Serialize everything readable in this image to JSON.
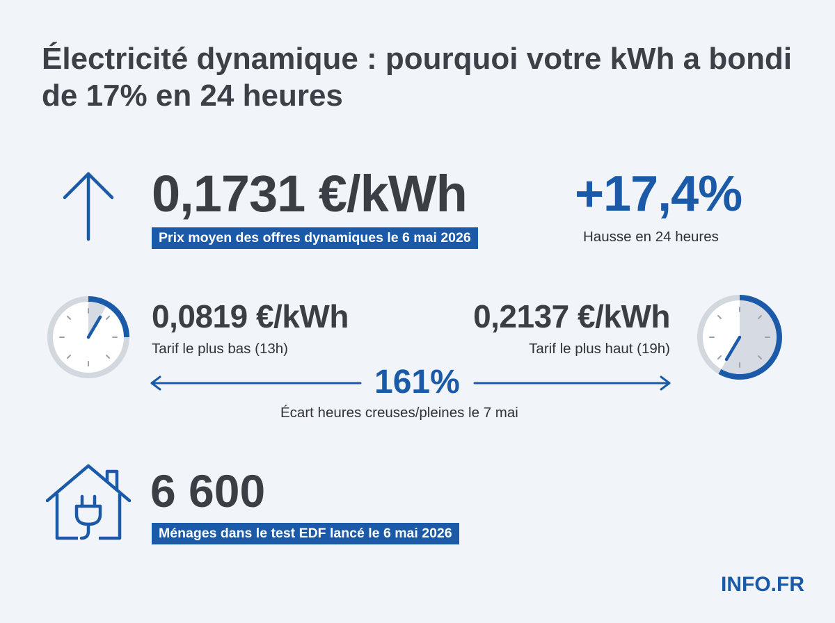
{
  "title": "Électricité dynamique : pourquoi votre kWh a bondi de 17% en 24 heures",
  "main_stat": {
    "value": "0,1731 €/kWh",
    "label": "Prix moyen des offres dynamiques le 6 mai 2026",
    "icon": "arrow-up-icon"
  },
  "change_stat": {
    "value": "+17,4%",
    "label": "Hausse en 24 heures"
  },
  "low_tariff": {
    "value": "0,0819 €/kWh",
    "label": "Tarif le plus bas (13h)",
    "icon": "clock-icon"
  },
  "high_tariff": {
    "value": "0,2137 €/kWh",
    "label": "Tarif le plus haut (19h)",
    "icon": "clock-icon"
  },
  "spread": {
    "value": "161%",
    "label": "Écart heures creuses/pleines le 7 mai"
  },
  "households": {
    "value": "6 600",
    "label": "Ménages dans le test EDF lancé le 6 mai 2026",
    "icon": "house-plug-icon"
  },
  "brand": "INFO.FR",
  "colors": {
    "accent": "#1a5aa8",
    "text": "#3b3e44",
    "background": "#f1f4f8"
  }
}
